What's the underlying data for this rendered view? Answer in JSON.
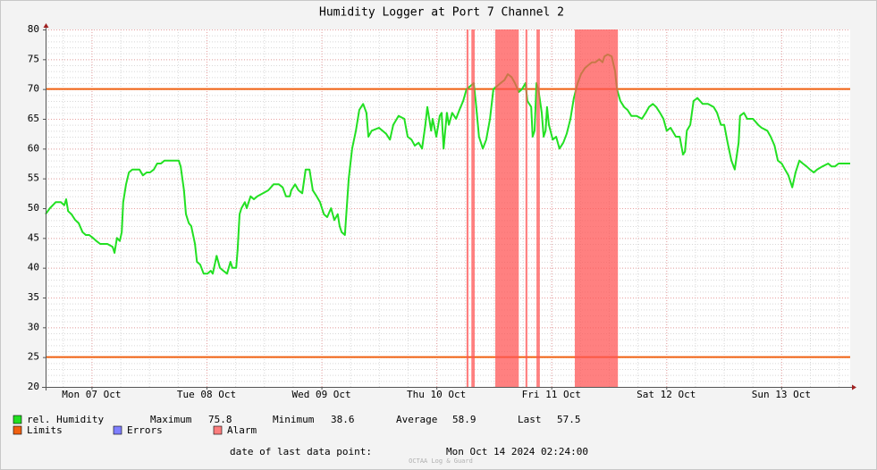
{
  "chart_data": {
    "type": "line",
    "title": "Humidity Logger at Port 7 Channel 2",
    "xlim": [
      2.4,
      170.4
    ],
    "xticks": [
      {
        "value": 12,
        "label": "Mon 07 Oct"
      },
      {
        "value": 36,
        "label": "Tue 08 Oct"
      },
      {
        "value": 60,
        "label": "Wed 09 Oct"
      },
      {
        "value": 84,
        "label": "Thu 10 Oct"
      },
      {
        "value": 108,
        "label": "Fri 11 Oct"
      },
      {
        "value": 132,
        "label": "Sat 12 Oct"
      },
      {
        "value": 156,
        "label": "Sun 13 Oct"
      }
    ],
    "x_minor_step": 6,
    "ylim": [
      20,
      80
    ],
    "yticks": [
      20,
      25,
      30,
      35,
      40,
      45,
      50,
      55,
      60,
      65,
      70,
      75,
      80
    ],
    "y_minor_step": 1,
    "grid": true,
    "series": [
      {
        "name": "rel. Humidity",
        "color": "#22e022",
        "x": [
          2.4,
          3.3,
          4.5,
          5.6,
          6.3,
          6.7,
          7.1,
          7.8,
          8.6,
          9.3,
          10.1,
          10.8,
          11.5,
          12.3,
          13.0,
          13.8,
          14.5,
          15.3,
          16.4,
          16.8,
          17.3,
          17.9,
          18.3,
          18.6,
          19.2,
          19.8,
          20.5,
          21.3,
          22.0,
          22.7,
          23.5,
          24.2,
          25.0,
          25.7,
          26.5,
          27.2,
          28.0,
          30.2,
          30.6,
          31.3,
          31.7,
          32.3,
          32.8,
          33.6,
          34.0,
          34.7,
          35.4,
          36.2,
          36.9,
          37.3,
          38.1,
          38.8,
          39.5,
          40.3,
          41.0,
          41.4,
          42.2,
          42.5,
          42.9,
          43.3,
          44.0,
          44.4,
          45.2,
          45.9,
          46.6,
          47.8,
          48.9,
          50.0,
          51.1,
          51.9,
          52.6,
          53.4,
          53.7,
          54.5,
          55.2,
          56.0,
          56.7,
          57.5,
          58.2,
          59.0,
          59.7,
          60.5,
          61.2,
          62.0,
          62.7,
          63.4,
          63.8,
          64.2,
          64.9,
          65.7,
          66.4,
          67.2,
          67.9,
          68.7,
          69.4,
          69.8,
          70.5,
          72.0,
          73.5,
          74.3,
          75.0,
          76.1,
          77.3,
          78.0,
          78.8,
          79.5,
          80.3,
          81.0,
          81.7,
          82.1,
          82.9,
          83.2,
          84.0,
          84.7,
          85.1,
          85.5,
          86.2,
          86.6,
          87.3,
          88.1,
          88.8,
          89.6,
          90.3,
          91.1,
          91.8,
          92.2,
          92.9,
          93.7,
          94.4,
          95.2,
          95.9,
          96.7,
          97.4,
          98.2,
          98.9,
          99.7,
          100.4,
          101.2,
          101.9,
          102.6,
          103.0,
          103.8,
          104.1,
          104.5,
          104.9,
          105.3,
          106.0,
          106.4,
          106.8,
          107.1,
          107.5,
          108.3,
          109.0,
          109.7,
          110.5,
          111.2,
          112.0,
          112.7,
          113.5,
          114.2,
          115.0,
          115.7,
          116.5,
          117.2,
          118.0,
          118.7,
          119.1,
          119.8,
          120.6,
          121.3,
          121.7,
          122.4,
          123.2,
          123.9,
          124.7,
          125.8,
          126.9,
          127.7,
          128.4,
          129.2,
          129.9,
          130.7,
          131.4,
          132.1,
          132.9,
          134.0,
          134.8,
          135.5,
          135.9,
          136.3,
          137.0,
          137.7,
          138.5,
          139.6,
          140.7,
          141.9,
          142.6,
          143.4,
          144.1,
          144.8,
          145.6,
          146.3,
          147.1,
          147.4,
          148.2,
          148.9,
          150.1,
          151.2,
          151.9,
          153.1,
          153.8,
          154.6,
          155.3,
          156.1,
          156.8,
          157.5,
          158.3,
          159.0,
          159.8,
          160.5,
          161.3,
          162.0,
          162.8,
          163.5,
          164.6,
          165.8,
          166.5,
          167.2,
          168.0,
          169.1,
          170.4
        ],
        "values": [
          49,
          50,
          51,
          51,
          50.5,
          51.5,
          49.5,
          49,
          48,
          47.5,
          46,
          45.5,
          45.5,
          45,
          44.5,
          44,
          44,
          44,
          43.5,
          42.5,
          45,
          44.5,
          46,
          51,
          54,
          56,
          56.5,
          56.5,
          56.5,
          55.5,
          56,
          56,
          56.5,
          57.5,
          57.5,
          58,
          58,
          58,
          57,
          53,
          49,
          47.5,
          47,
          44,
          41,
          40.5,
          39,
          39,
          39.5,
          39,
          42,
          40,
          39.5,
          39,
          41,
          40,
          40,
          43,
          49,
          50,
          51,
          50,
          52,
          51.5,
          52,
          52.5,
          53,
          54,
          54,
          53.5,
          52,
          52,
          53,
          54,
          53,
          52.5,
          56.5,
          56.5,
          53,
          52,
          51,
          49,
          48.5,
          50,
          48,
          49,
          47,
          46,
          45.5,
          55,
          60,
          63,
          66.5,
          67.5,
          66,
          62,
          63,
          63.5,
          62.5,
          61.5,
          64,
          65.5,
          65,
          62,
          61.5,
          60.5,
          61,
          60,
          64,
          67,
          63,
          65,
          62,
          65.5,
          66,
          60,
          66,
          64,
          66,
          65,
          66.5,
          68,
          70,
          70.5,
          71,
          68,
          62,
          60,
          61.5,
          65,
          70,
          70.5,
          71,
          71.5,
          72.5,
          72,
          71,
          69.5,
          70,
          71,
          68,
          67,
          62,
          63,
          71,
          70,
          66,
          62,
          63,
          67,
          64,
          61.5,
          62,
          60,
          61,
          62.5,
          65,
          68.5,
          71,
          72.5,
          73.5,
          74,
          74.5,
          74.5,
          75,
          74.5,
          75.5,
          75.8,
          75.5,
          73,
          70,
          68,
          67,
          66.5,
          65.5,
          65.5,
          65,
          66,
          67,
          67.5,
          67,
          66,
          65,
          63,
          63.5,
          62,
          62,
          59,
          59.5,
          63,
          64,
          68,
          68.5,
          67.5,
          67.5,
          67,
          66,
          64,
          64,
          61,
          58,
          56.5,
          61,
          65.5,
          66,
          65,
          65,
          64,
          63.5,
          63,
          62,
          60.5,
          58,
          57.5,
          56.5,
          55.5,
          53.5,
          56,
          58,
          57.5,
          57,
          56.5,
          56,
          56.5,
          57,
          57.5,
          57,
          57,
          57.5,
          57.5,
          57.5
        ]
      }
    ],
    "limits": {
      "name": "Limits",
      "color": "#f06010",
      "values": [
        70,
        25
      ]
    },
    "errors": {
      "name": "Errors",
      "color": "#7f7fff"
    },
    "alarms": {
      "name": "Alarm",
      "color": "#ff5555",
      "ranges": [
        [
          90.3,
          90.7
        ],
        [
          91.3,
          92.0
        ],
        [
          96.3,
          101.2
        ],
        [
          102.6,
          103.0
        ],
        [
          104.9,
          105.6
        ],
        [
          112.9,
          121.9
        ]
      ]
    },
    "stats": [
      {
        "label": "Maximum",
        "value": 75.8
      },
      {
        "label": "Minimum",
        "value": 38.6
      },
      {
        "label": "Average",
        "value": 58.9
      },
      {
        "label": "Last",
        "value": 57.5
      }
    ],
    "footer_label": "date of last data point:",
    "footer_value": "Mon Oct 14 2024 02:24:00",
    "watermark": "OCTAA Log & Guard"
  }
}
